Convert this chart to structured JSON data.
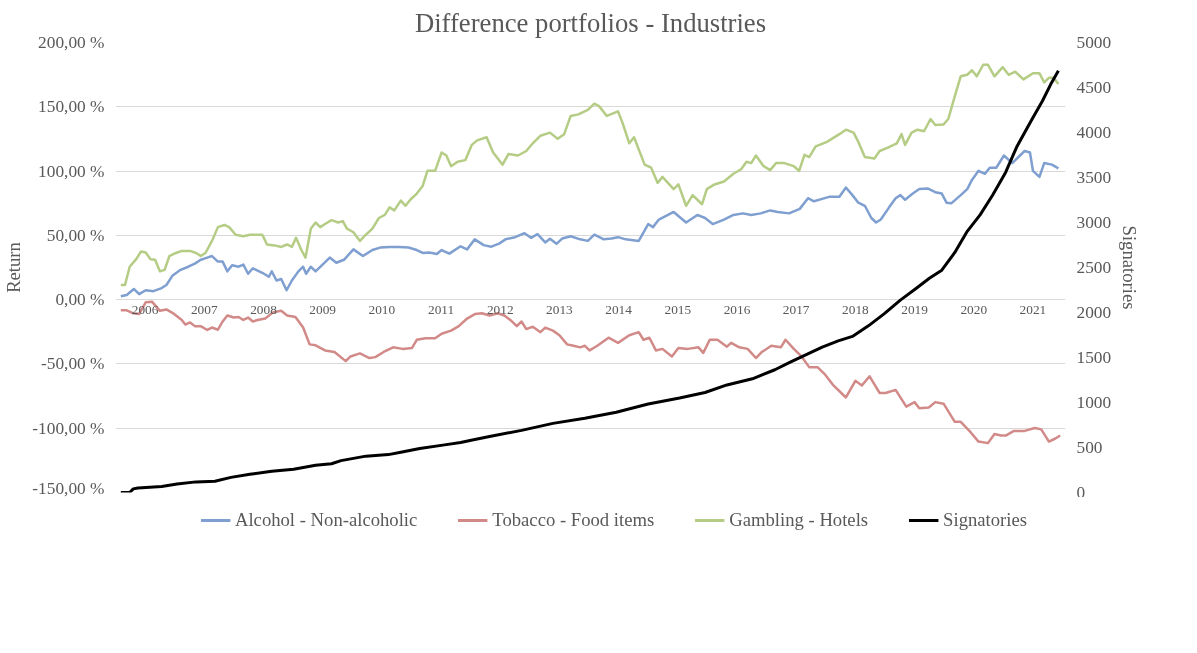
{
  "chart_data": {
    "type": "line",
    "title": "Difference portfolios - Industries",
    "ylabel": "Return",
    "y2label": "Signatories",
    "xlim": [
      2005.5,
      2021.55
    ],
    "xticks": [
      2006,
      2007,
      2008,
      2009,
      2010,
      2011,
      2012,
      2013,
      2014,
      2015,
      2016,
      2017,
      2018,
      2019,
      2020,
      2021
    ],
    "ylim": [
      -150,
      200
    ],
    "yticks": [
      {
        "value": -150,
        "label": "-150,00 %"
      },
      {
        "value": -100,
        "label": "-100,00 %"
      },
      {
        "value": -50,
        "label": "-50,00 %"
      },
      {
        "value": 0,
        "label": "0,00 %"
      },
      {
        "value": 50,
        "label": "50,00 %"
      },
      {
        "value": 100,
        "label": "100,00 %"
      },
      {
        "value": 150,
        "label": "150,00 %"
      },
      {
        "value": 200,
        "label": "200,00 %"
      }
    ],
    "y2lim": [
      0,
      5000
    ],
    "y2ticks": [
      0,
      500,
      1000,
      1500,
      2000,
      2500,
      3000,
      3500,
      4000,
      4500,
      5000
    ],
    "grid": "y",
    "legend": "bottom",
    "series": [
      {
        "name": "Alcohol - Non-alcoholic",
        "color": "#7f9fd0",
        "x": [
          2005.59,
          2005.69,
          2005.81,
          2005.9,
          2006.01,
          2006.14,
          2006.28,
          2006.36,
          2006.46,
          2006.6,
          2006.73,
          2006.84,
          2006.94,
          2007.05,
          2007.13,
          2007.23,
          2007.31,
          2007.39,
          2007.47,
          2007.58,
          2007.66,
          2007.74,
          2007.82,
          2007.98,
          2008.09,
          2008.14,
          2008.22,
          2008.3,
          2008.39,
          2008.48,
          2008.59,
          2008.67,
          2008.72,
          2008.8,
          2008.88,
          2008.99,
          2009.12,
          2009.23,
          2009.36,
          2009.52,
          2009.68,
          2009.84,
          2009.97,
          2010.13,
          2010.29,
          2010.45,
          2010.59,
          2010.69,
          2010.8,
          2010.93,
          2011.01,
          2011.14,
          2011.33,
          2011.44,
          2011.57,
          2011.72,
          2011.85,
          2011.98,
          2012.09,
          2012.25,
          2012.41,
          2012.52,
          2012.63,
          2012.76,
          2012.84,
          2012.95,
          2013.05,
          2013.19,
          2013.35,
          2013.48,
          2013.59,
          2013.75,
          2013.88,
          2013.99,
          2014.12,
          2014.34,
          2014.5,
          2014.58,
          2014.68,
          2014.93,
          2015.14,
          2015.33,
          2015.46,
          2015.59,
          2015.78,
          2015.94,
          2016.1,
          2016.24,
          2016.4,
          2016.56,
          2016.69,
          2016.88,
          2017.06,
          2017.2,
          2017.3,
          2017.44,
          2017.57,
          2017.73,
          2017.84,
          2017.95,
          2018.05,
          2018.16,
          2018.27,
          2018.35,
          2018.43,
          2018.57,
          2018.68,
          2018.76,
          2018.84,
          2018.97,
          2019.08,
          2019.22,
          2019.35,
          2019.46,
          2019.54,
          2019.62,
          2019.78,
          2019.89,
          2019.97,
          2020.08,
          2020.19,
          2020.27,
          2020.38,
          2020.51,
          2020.65,
          2020.78,
          2020.86,
          2020.95,
          2021.0,
          2021.11,
          2021.19,
          2021.32,
          2021.43
        ],
        "values": [
          2.6,
          3.6,
          8.3,
          4.3,
          7.3,
          6.6,
          9.0,
          11.4,
          18.5,
          23.2,
          25.6,
          28.0,
          31.0,
          32.7,
          33.9,
          29.6,
          29.6,
          22.0,
          26.8,
          25.6,
          27.3,
          20.1,
          24.4,
          20.9,
          17.8,
          22.0,
          14.9,
          16.1,
          7.3,
          14.9,
          22.0,
          25.6,
          20.1,
          25.6,
          22.0,
          26.8,
          32.7,
          28.7,
          31.0,
          39.1,
          33.9,
          38.6,
          40.5,
          41.0,
          41.0,
          40.5,
          38.6,
          36.3,
          36.7,
          35.5,
          38.6,
          35.8,
          41.5,
          39.1,
          46.9,
          42.4,
          41.2,
          43.6,
          46.9,
          48.6,
          51.7,
          48.1,
          50.9,
          44.5,
          47.4,
          43.4,
          47.6,
          49.3,
          46.9,
          45.7,
          50.5,
          46.9,
          47.6,
          48.6,
          46.9,
          45.7,
          58.8,
          56.4,
          62.3,
          68.2,
          60.0,
          65.9,
          63.5,
          58.8,
          62.3,
          65.9,
          67.1,
          65.9,
          67.1,
          69.4,
          68.2,
          67.1,
          70.6,
          78.9,
          76.5,
          78.4,
          80.1,
          80.1,
          87.2,
          81.3,
          75.4,
          73.0,
          63.5,
          60.0,
          62.3,
          71.8,
          78.9,
          81.3,
          77.7,
          82.5,
          86.0,
          86.5,
          83.6,
          82.5,
          75.4,
          74.9,
          81.3,
          86.0,
          93.1,
          100.2,
          97.9,
          102.6,
          102.6,
          112.1,
          106.2,
          112.1,
          115.6,
          114.5,
          100.2,
          95.5,
          106.2,
          105.0,
          102.1
        ]
      },
      {
        "name": "Tobacco - Food items",
        "color": "#d28a88",
        "x": [
          2005.59,
          2005.69,
          2005.8,
          2005.9,
          2006.01,
          2006.12,
          2006.25,
          2006.36,
          2006.49,
          2006.62,
          2006.68,
          2006.76,
          2006.84,
          2006.94,
          2007.05,
          2007.13,
          2007.23,
          2007.31,
          2007.39,
          2007.5,
          2007.58,
          2007.66,
          2007.74,
          2007.82,
          2007.9,
          2008.03,
          2008.16,
          2008.3,
          2008.4,
          2008.54,
          2008.67,
          2008.78,
          2008.88,
          2009.04,
          2009.2,
          2009.39,
          2009.47,
          2009.63,
          2009.79,
          2009.89,
          2010.03,
          2010.19,
          2010.35,
          2010.51,
          2010.59,
          2010.74,
          2010.9,
          2011.01,
          2011.17,
          2011.3,
          2011.44,
          2011.58,
          2011.69,
          2011.82,
          2011.96,
          2012.07,
          2012.17,
          2012.28,
          2012.36,
          2012.44,
          2012.55,
          2012.68,
          2012.76,
          2012.89,
          2013.0,
          2013.13,
          2013.24,
          2013.35,
          2013.43,
          2013.51,
          2013.64,
          2013.83,
          2013.99,
          2014.18,
          2014.34,
          2014.42,
          2014.52,
          2014.63,
          2014.74,
          2014.9,
          2015.01,
          2015.17,
          2015.35,
          2015.43,
          2015.54,
          2015.67,
          2015.83,
          2015.9,
          2016.04,
          2016.18,
          2016.32,
          2016.42,
          2016.58,
          2016.74,
          2016.82,
          2016.96,
          2017.09,
          2017.22,
          2017.36,
          2017.49,
          2017.63,
          2017.84,
          2018.0,
          2018.11,
          2018.24,
          2018.41,
          2018.51,
          2018.68,
          2018.86,
          2019.0,
          2019.08,
          2019.24,
          2019.35,
          2019.49,
          2019.68,
          2019.78,
          2019.95,
          2020.08,
          2020.24,
          2020.35,
          2020.46,
          2020.54,
          2020.68,
          2020.86,
          2021.03,
          2021.14,
          2021.27,
          2021.38,
          2021.46
        ],
        "values": [
          -8.3,
          -8.3,
          -10.6,
          -11.1,
          -2.1,
          -1.7,
          -8.7,
          -7.6,
          -11.1,
          -15.8,
          -19.4,
          -17.7,
          -20.6,
          -20.6,
          -23.6,
          -21.7,
          -23.4,
          -17.0,
          -12.3,
          -13.9,
          -13.5,
          -15.8,
          -13.9,
          -17.0,
          -15.8,
          -14.7,
          -9.9,
          -8.7,
          -12.3,
          -13.5,
          -21.7,
          -34.8,
          -35.5,
          -39.5,
          -40.7,
          -47.8,
          -44.2,
          -41.8,
          -45.4,
          -44.7,
          -40.7,
          -37.1,
          -38.3,
          -37.6,
          -31.2,
          -30.0,
          -30.0,
          -26.5,
          -24.1,
          -20.6,
          -14.7,
          -11.1,
          -10.6,
          -12.3,
          -10.6,
          -12.3,
          -15.8,
          -20.6,
          -17.0,
          -22.9,
          -21.0,
          -25.3,
          -21.7,
          -24.1,
          -27.7,
          -34.8,
          -35.9,
          -37.1,
          -35.9,
          -39.5,
          -35.9,
          -29.6,
          -33.6,
          -27.7,
          -25.3,
          -31.2,
          -29.6,
          -39.5,
          -38.3,
          -44.2,
          -37.6,
          -38.3,
          -37.1,
          -41.4,
          -31.2,
          -31.2,
          -36.6,
          -33.6,
          -37.1,
          -38.3,
          -45.4,
          -40.7,
          -35.9,
          -37.1,
          -31.2,
          -38.3,
          -44.2,
          -52.5,
          -52.5,
          -58.4,
          -66.7,
          -76.1,
          -63.1,
          -66.7,
          -59.6,
          -72.6,
          -72.6,
          -70.2,
          -83.2,
          -79.7,
          -84.4,
          -83.9,
          -79.7,
          -80.9,
          -95.0,
          -95.0,
          -103.3,
          -110.4,
          -111.6,
          -104.5,
          -105.7,
          -105.7,
          -102.1,
          -102.1,
          -99.8,
          -100.9,
          -110.4,
          -108.0,
          -105.7
        ]
      },
      {
        "name": "Gambling - Hotels",
        "color": "#b5cc85",
        "x": [
          2005.59,
          2005.66,
          2005.74,
          2005.85,
          2005.93,
          2006.01,
          2006.09,
          2006.17,
          2006.25,
          2006.33,
          2006.41,
          2006.52,
          2006.62,
          2006.76,
          2006.86,
          2006.94,
          2007.02,
          2007.13,
          2007.23,
          2007.34,
          2007.42,
          2007.53,
          2007.66,
          2007.77,
          2007.87,
          2007.98,
          2008.06,
          2008.19,
          2008.3,
          2008.4,
          2008.48,
          2008.55,
          2008.64,
          2008.71,
          2008.8,
          2008.88,
          2008.96,
          2009.04,
          2009.15,
          2009.26,
          2009.34,
          2009.41,
          2009.52,
          2009.63,
          2009.73,
          2009.84,
          2009.95,
          2010.05,
          2010.13,
          2010.21,
          2010.32,
          2010.4,
          2010.48,
          2010.59,
          2010.69,
          2010.77,
          2010.9,
          2011.01,
          2011.09,
          2011.17,
          2011.28,
          2011.41,
          2011.52,
          2011.61,
          2011.77,
          2011.88,
          2012.04,
          2012.14,
          2012.3,
          2012.44,
          2012.55,
          2012.68,
          2012.84,
          2012.97,
          2013.08,
          2013.19,
          2013.32,
          2013.48,
          2013.59,
          2013.67,
          2013.8,
          2013.99,
          2014.07,
          2014.18,
          2014.26,
          2014.44,
          2014.55,
          2014.66,
          2014.74,
          2014.93,
          2015.01,
          2015.14,
          2015.25,
          2015.41,
          2015.49,
          2015.62,
          2015.78,
          2015.94,
          2016.07,
          2016.16,
          2016.24,
          2016.32,
          2016.45,
          2016.56,
          2016.66,
          2016.8,
          2016.96,
          2017.05,
          2017.14,
          2017.22,
          2017.33,
          2017.52,
          2017.73,
          2017.84,
          2017.97,
          2018.05,
          2018.16,
          2018.32,
          2018.41,
          2018.54,
          2018.7,
          2018.78,
          2018.84,
          2018.95,
          2019.05,
          2019.16,
          2019.27,
          2019.35,
          2019.49,
          2019.57,
          2019.68,
          2019.78,
          2019.89,
          2019.97,
          2020.05,
          2020.16,
          2020.24,
          2020.35,
          2020.49,
          2020.59,
          2020.7,
          2020.84,
          2021.0,
          2021.11,
          2021.19,
          2021.27,
          2021.35,
          2021.43
        ],
        "values": [
          11.4,
          11.4,
          25.6,
          31.5,
          37.4,
          36.7,
          31.5,
          31.0,
          22.0,
          23.2,
          33.9,
          36.3,
          37.9,
          37.9,
          36.3,
          33.9,
          36.3,
          45.7,
          56.4,
          58.1,
          56.4,
          50.5,
          49.3,
          50.5,
          50.5,
          50.5,
          42.9,
          42.2,
          41.0,
          42.9,
          41.0,
          48.1,
          38.6,
          32.7,
          55.2,
          60.0,
          56.4,
          58.8,
          61.8,
          60.0,
          61.1,
          55.2,
          52.4,
          45.7,
          50.5,
          55.2,
          63.5,
          65.9,
          71.8,
          69.4,
          77.0,
          73.0,
          77.7,
          82.5,
          88.4,
          100.2,
          100.2,
          114.5,
          112.1,
          103.8,
          107.3,
          108.5,
          120.4,
          123.9,
          126.3,
          114.5,
          105.0,
          113.3,
          112.1,
          115.6,
          121.6,
          127.5,
          129.9,
          125.1,
          128.7,
          142.9,
          144.1,
          147.6,
          152.4,
          150.5,
          142.9,
          146.4,
          137.0,
          121.6,
          126.3,
          105.0,
          102.6,
          90.8,
          95.5,
          86.0,
          89.6,
          73.0,
          81.3,
          74.2,
          86.0,
          89.6,
          91.9,
          97.9,
          101.4,
          107.3,
          106.2,
          112.1,
          103.8,
          100.7,
          106.2,
          106.2,
          103.8,
          100.2,
          112.6,
          110.9,
          119.2,
          122.7,
          128.7,
          132.2,
          129.9,
          122.7,
          110.9,
          109.7,
          115.6,
          118.0,
          121.6,
          128.7,
          120.4,
          129.9,
          132.2,
          131.0,
          140.5,
          135.8,
          136.3,
          140.5,
          158.3,
          173.7,
          174.9,
          178.4,
          173.7,
          182.7,
          182.7,
          173.7,
          180.8,
          174.9,
          177.3,
          171.3,
          176.1,
          176.1,
          169.0,
          172.5,
          172.5,
          167.8
        ]
      },
      {
        "name": "Signatories",
        "color": "#000000",
        "axis": "y2",
        "x": [
          2005.59,
          2005.74,
          2005.8,
          2005.88,
          2006.28,
          2006.54,
          2006.86,
          2007.18,
          2007.45,
          2007.77,
          2008.14,
          2008.51,
          2008.88,
          2009.15,
          2009.31,
          2009.73,
          2010.11,
          2010.32,
          2010.64,
          2011.06,
          2011.33,
          2011.57,
          2011.82,
          2012.36,
          2012.89,
          2013.43,
          2013.96,
          2014.5,
          2015.03,
          2015.46,
          2015.83,
          2016.26,
          2016.64,
          2016.9,
          2017.17,
          2017.44,
          2017.71,
          2017.95,
          2018.22,
          2018.49,
          2018.76,
          2019.03,
          2019.25,
          2019.46,
          2019.68,
          2019.89,
          2020.11,
          2020.32,
          2020.54,
          2020.73,
          2020.97,
          2021.16,
          2021.3,
          2021.43
        ],
        "values": [
          0,
          0,
          40,
          51,
          67,
          94,
          118,
          125,
          168,
          202,
          236,
          259,
          303,
          320,
          354,
          404,
          421,
          448,
          488,
          529,
          556,
          589,
          623,
          690,
          768,
          825,
          892,
          983,
          1050,
          1111,
          1195,
          1263,
          1364,
          1448,
          1532,
          1616,
          1684,
          1734,
          1852,
          1987,
          2138,
          2270,
          2380,
          2470,
          2667,
          2902,
          3088,
          3306,
          3559,
          3845,
          4131,
          4350,
          4535,
          4687
        ]
      }
    ]
  }
}
